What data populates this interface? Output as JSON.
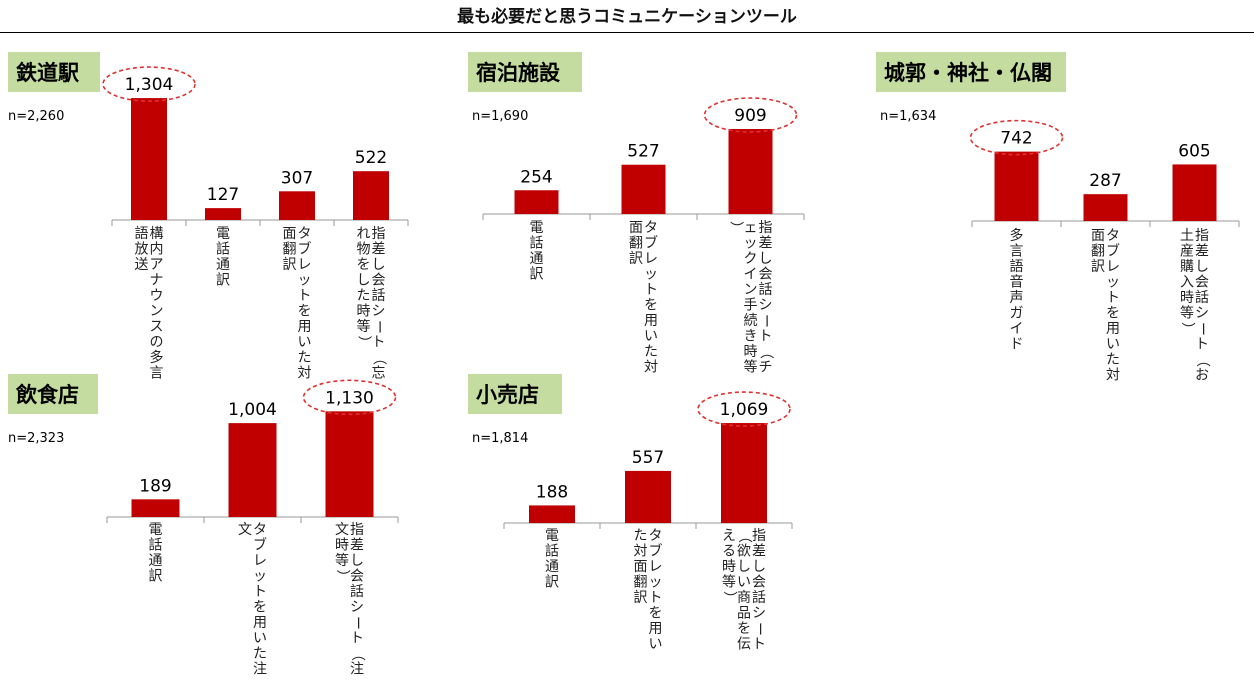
{
  "main_title": "最も必要だと思うコミュニケーションツール",
  "colors": {
    "bar": "#c00000",
    "panel_label_bg": "#c4dcA0",
    "highlight_ellipse": "#e03030",
    "axis_line": "#999999"
  },
  "chart_data": [
    {
      "type": "bar",
      "title": "鉄道駅",
      "sample_size": "n=2,260",
      "categories": [
        "構内アナウンスの多言語放送",
        "電話通訳",
        "タブレットを用いた対面翻訳",
        "指差し会話シート（忘れ物をした時等）"
      ],
      "values": [
        1304,
        127,
        307,
        522
      ],
      "value_labels": [
        "1,304",
        "127",
        "307",
        "522"
      ],
      "highlight_index": 0
    },
    {
      "type": "bar",
      "title": "宿泊施設",
      "sample_size": "n=1,690",
      "categories": [
        "電話通訳",
        "タブレットを用いた対面翻訳",
        "指差し会話シート（チェックイン手続き時等）"
      ],
      "values": [
        254,
        527,
        909
      ],
      "value_labels": [
        "254",
        "527",
        "909"
      ],
      "highlight_index": 2
    },
    {
      "type": "bar",
      "title": "城郭・神社・仏閣",
      "sample_size": "n=1,634",
      "categories": [
        "多言語音声ガイド",
        "タブレットを用いた対面翻訳",
        "指差し会話シート（お土産購入時等）"
      ],
      "values": [
        742,
        287,
        605
      ],
      "value_labels": [
        "742",
        "287",
        "605"
      ],
      "highlight_index": 0
    },
    {
      "type": "bar",
      "title": "飲食店",
      "sample_size": "n=2,323",
      "categories": [
        "電話通訳",
        "タブレットを用いた注文",
        "指差し会話シート（注文時等）"
      ],
      "values": [
        189,
        1004,
        1130
      ],
      "value_labels": [
        "189",
        "1,004",
        "1,130"
      ],
      "highlight_index": 2
    },
    {
      "type": "bar",
      "title": "小売店",
      "sample_size": "n=1,814",
      "categories": [
        "電話通訳",
        "タブレットを用いた対面翻訳",
        "指差し会話シート（欲しい商品を伝える時等）"
      ],
      "values": [
        188,
        557,
        1069
      ],
      "value_labels": [
        "188",
        "557",
        "1,069"
      ],
      "highlight_index": 2
    }
  ]
}
